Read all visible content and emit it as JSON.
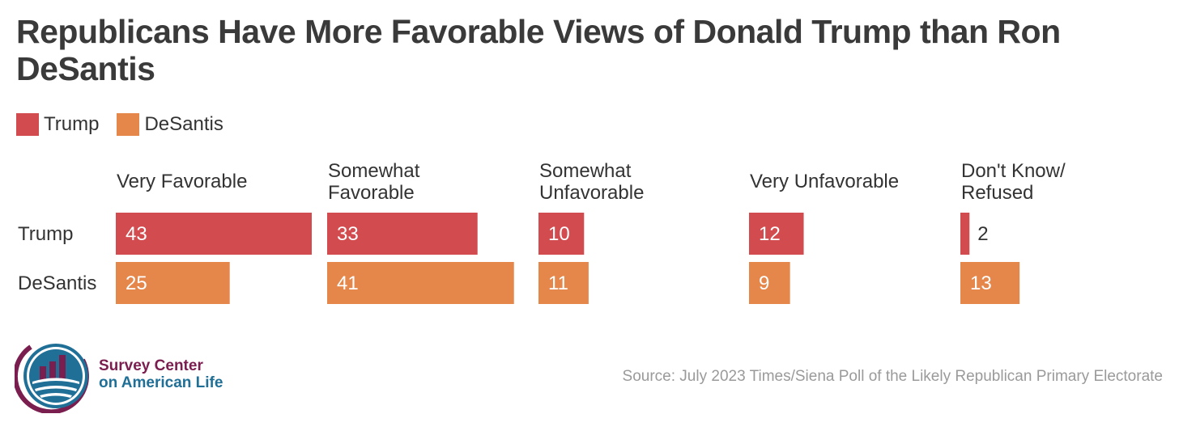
{
  "title": "Republicans Have More Favorable Views of Donald Trump than Ron DeSantis",
  "legend": [
    {
      "label": "Trump",
      "color": "#d14b4f"
    },
    {
      "label": "DeSantis",
      "color": "#e5874b"
    }
  ],
  "source": "Source: July 2023 Times/Siena Poll of the Likely Republican Primary Electorate",
  "logo": {
    "line1": "Survey Center",
    "line2": "on American Life"
  },
  "chart_data": {
    "type": "bar",
    "orientation": "horizontal",
    "layout": "small-multiples",
    "title": "Republicans Have More Favorable Views of Donald Trump than Ron DeSantis",
    "categories": [
      "Very Favorable",
      "Somewhat Favorable",
      "Somewhat Unfavorable",
      "Very Unfavorable",
      "Don't Know/ Refused"
    ],
    "category_lines": [
      [
        "Very Favorable"
      ],
      [
        "Somewhat",
        "Favorable"
      ],
      [
        "Somewhat",
        "Unfavorable"
      ],
      [
        "Very Unfavorable"
      ],
      [
        "Don't Know/",
        "Refused"
      ]
    ],
    "series": [
      {
        "name": "Trump",
        "color": "#d14b4f",
        "values": [
          43,
          33,
          10,
          12,
          2
        ]
      },
      {
        "name": "DeSantis",
        "color": "#e5874b",
        "values": [
          25,
          41,
          11,
          9,
          13
        ]
      }
    ],
    "xlim": [
      0,
      43
    ],
    "grid": false,
    "legend_position": "top-left",
    "data_labels": true
  }
}
